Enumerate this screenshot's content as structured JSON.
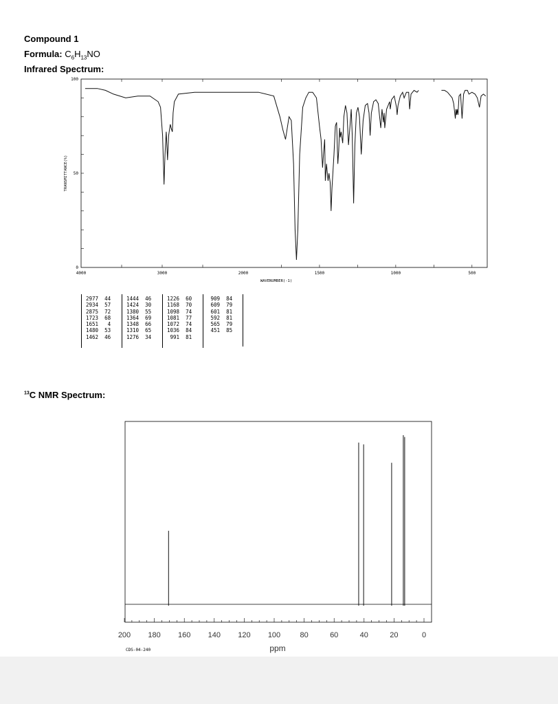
{
  "compound_title": "Compound 1",
  "formula": {
    "label": "Formula:",
    "value": "C6H13NO",
    "parts": [
      "C",
      "6",
      "H",
      "13",
      "NO"
    ]
  },
  "ir": {
    "heading": "Infrared Spectrum:",
    "ylabel": "TRANSMITTANCE(%)",
    "xlabel": "WAVENUMBER(-1)",
    "y_ticks": [
      "100",
      "50",
      "0"
    ],
    "x_ticks": [
      "4000",
      "3000",
      "2000",
      "1500",
      "1000",
      "500"
    ],
    "peak_table": [
      [
        [
          "2977",
          "44"
        ],
        [
          "2934",
          "57"
        ],
        [
          "2875",
          "72"
        ],
        [
          "1723",
          "68"
        ],
        [
          "1651",
          "4"
        ],
        [
          "1480",
          "53"
        ],
        [
          "1462",
          "46"
        ]
      ],
      [
        [
          "1444",
          "46"
        ],
        [
          "1424",
          "30"
        ],
        [
          "1380",
          "55"
        ],
        [
          "1364",
          "69"
        ],
        [
          "1348",
          "66"
        ],
        [
          "1310",
          "65"
        ],
        [
          "1276",
          "34"
        ]
      ],
      [
        [
          "1226",
          "60"
        ],
        [
          "1168",
          "70"
        ],
        [
          "1098",
          "74"
        ],
        [
          "1081",
          "77"
        ],
        [
          "1072",
          "74"
        ],
        [
          "1036",
          "84"
        ],
        [
          "991",
          "81"
        ]
      ],
      [
        [
          "909",
          "84"
        ],
        [
          "609",
          "79"
        ],
        [
          "601",
          "81"
        ],
        [
          "592",
          "81"
        ],
        [
          "565",
          "79"
        ],
        [
          "451",
          "85"
        ]
      ]
    ]
  },
  "nmr": {
    "heading_sup": "13",
    "heading": "C NMR Spectrum:",
    "xlabel": "ppm",
    "x_ticks": [
      "200",
      "180",
      "160",
      "140",
      "120",
      "100",
      "80",
      "60",
      "40",
      "20",
      "0"
    ],
    "code": "CDS-04-240"
  },
  "chart_data": [
    {
      "type": "line",
      "title": "Infrared Spectrum:",
      "xlabel": "WAVENUMBER(-1)",
      "ylabel": "TRANSMITTANCE(%)",
      "xlim": [
        4000,
        400
      ],
      "ylim": [
        0,
        100
      ],
      "x_axis_note": "scale changes at 2000",
      "series": [
        {
          "points": [
            [
              3950,
              95
            ],
            [
              3800,
              95
            ],
            [
              3700,
              94
            ],
            [
              3600,
              92
            ],
            [
              3450,
              90
            ],
            [
              3300,
              91
            ],
            [
              3150,
              91
            ],
            [
              3050,
              88
            ],
            [
              3020,
              85
            ],
            [
              2995,
              70
            ],
            [
              2977,
              44
            ],
            [
              2965,
              60
            ],
            [
              2950,
              72
            ],
            [
              2934,
              57
            ],
            [
              2920,
              70
            ],
            [
              2900,
              76
            ],
            [
              2890,
              74
            ],
            [
              2875,
              72
            ],
            [
              2865,
              82
            ],
            [
              2850,
              88
            ],
            [
              2800,
              92
            ],
            [
              2600,
              93
            ],
            [
              2400,
              93
            ],
            [
              2200,
              93
            ],
            [
              2000,
              93
            ],
            [
              1900,
              93
            ],
            [
              1800,
              91
            ],
            [
              1760,
              80
            ],
            [
              1740,
              73
            ],
            [
              1723,
              68
            ],
            [
              1715,
              72
            ],
            [
              1700,
              80
            ],
            [
              1685,
              78
            ],
            [
              1670,
              55
            ],
            [
              1660,
              20
            ],
            [
              1651,
              4
            ],
            [
              1642,
              20
            ],
            [
              1630,
              60
            ],
            [
              1610,
              85
            ],
            [
              1590,
              90
            ],
            [
              1570,
              93
            ],
            [
              1545,
              93
            ],
            [
              1520,
              90
            ],
            [
              1500,
              75
            ],
            [
              1490,
              68
            ],
            [
              1480,
              53
            ],
            [
              1474,
              60
            ],
            [
              1466,
              68
            ],
            [
              1462,
              46
            ],
            [
              1454,
              55
            ],
            [
              1444,
              46
            ],
            [
              1438,
              50
            ],
            [
              1430,
              45
            ],
            [
              1424,
              30
            ],
            [
              1418,
              42
            ],
            [
              1405,
              60
            ],
            [
              1396,
              75
            ],
            [
              1388,
              77
            ],
            [
              1380,
              55
            ],
            [
              1374,
              62
            ],
            [
              1368,
              74
            ],
            [
              1364,
              69
            ],
            [
              1358,
              72
            ],
            [
              1348,
              66
            ],
            [
              1340,
              80
            ],
            [
              1330,
              86
            ],
            [
              1320,
              82
            ],
            [
              1310,
              65
            ],
            [
              1300,
              75
            ],
            [
              1292,
              84
            ],
            [
              1285,
              70
            ],
            [
              1276,
              34
            ],
            [
              1268,
              65
            ],
            [
              1258,
              82
            ],
            [
              1248,
              85
            ],
            [
              1238,
              80
            ],
            [
              1226,
              60
            ],
            [
              1214,
              78
            ],
            [
              1200,
              86
            ],
            [
              1185,
              87
            ],
            [
              1175,
              82
            ],
            [
              1168,
              70
            ],
            [
              1160,
              82
            ],
            [
              1145,
              88
            ],
            [
              1130,
              89
            ],
            [
              1115,
              87
            ],
            [
              1098,
              74
            ],
            [
              1090,
              84
            ],
            [
              1081,
              77
            ],
            [
              1076,
              82
            ],
            [
              1072,
              74
            ],
            [
              1060,
              84
            ],
            [
              1050,
              86
            ],
            [
              1040,
              88
            ],
            [
              1036,
              84
            ],
            [
              1028,
              89
            ],
            [
              1010,
              91
            ],
            [
              995,
              85
            ],
            [
              991,
              81
            ],
            [
              985,
              86
            ],
            [
              970,
              91
            ],
            [
              955,
              93
            ],
            [
              945,
              90
            ],
            [
              930,
              93
            ],
            [
              915,
              93
            ],
            [
              909,
              84
            ],
            [
              900,
              92
            ],
            [
              880,
              94
            ],
            [
              860,
              93
            ],
            [
              850,
              94
            ]
          ]
        },
        {
          "points": [
            [
              700,
              94
            ],
            [
              680,
              94
            ],
            [
              660,
              93
            ],
            [
              640,
              91
            ],
            [
              630,
              90
            ],
            [
              620,
              87
            ],
            [
              609,
              79
            ],
            [
              605,
              84
            ],
            [
              601,
              81
            ],
            [
              597,
              84
            ],
            [
              592,
              81
            ],
            [
              585,
              91
            ],
            [
              575,
              92
            ],
            [
              565,
              79
            ],
            [
              555,
              92
            ],
            [
              545,
              94
            ],
            [
              530,
              94
            ],
            [
              520,
              92
            ],
            [
              500,
              93
            ],
            [
              480,
              92
            ],
            [
              465,
              90
            ],
            [
              451,
              85
            ],
            [
              440,
              91
            ],
            [
              425,
              92
            ],
            [
              410,
              91
            ]
          ]
        }
      ]
    },
    {
      "type": "bar",
      "title": "C NMR Spectrum:",
      "xlabel": "ppm",
      "xlim": [
        200,
        0
      ],
      "peaks_ppm": [
        170.5,
        43.6,
        40.3,
        21.6,
        13.8,
        12.9
      ],
      "relative_heights": [
        0.4,
        0.88,
        0.87,
        0.77,
        0.92,
        0.91
      ]
    }
  ]
}
